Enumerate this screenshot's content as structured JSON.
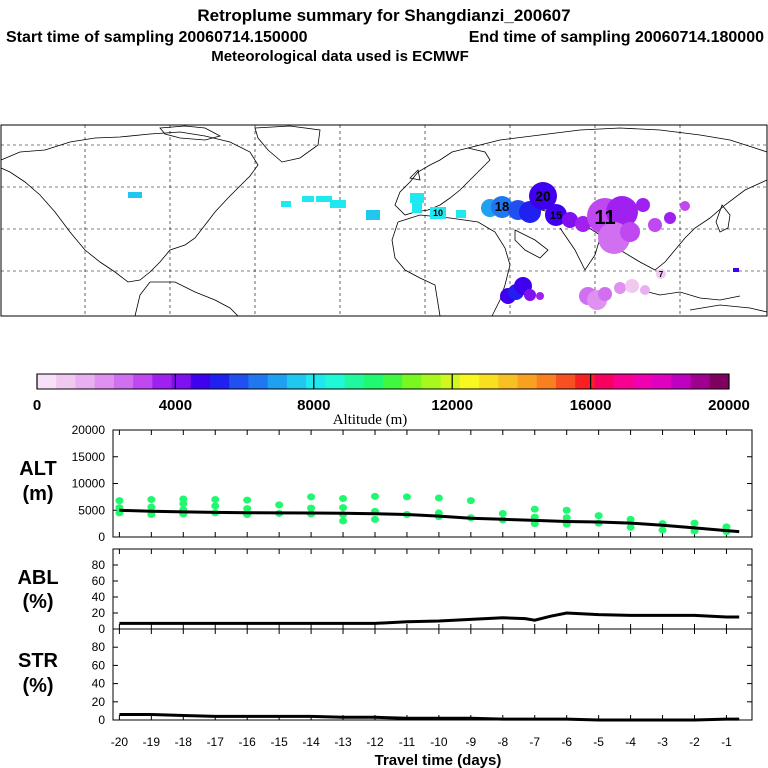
{
  "header": {
    "title": "Retroplume summary for Shangdianzi_200607",
    "sampling_start_label": "Start time of sampling 20060714.150000",
    "sampling_end_label": "End time of sampling 20060714.180000",
    "met_label": "Meteorological data used is ECMWF"
  },
  "colors": {
    "altitude_scale": [
      "#f8e0f8",
      "#f0c8f0",
      "#e8b0f0",
      "#e090f0",
      "#d070f0",
      "#c048f0",
      "#a020f0",
      "#8010f0",
      "#4000f0",
      "#2020f0",
      "#2050f0",
      "#2078f0",
      "#20a0f0",
      "#20c8f0",
      "#20e8f0",
      "#20f8d8",
      "#20f8a0",
      "#20f870",
      "#40f840",
      "#78f820",
      "#a8f820",
      "#d0f820",
      "#f8f820",
      "#f8e020",
      "#f8c020",
      "#f8a020",
      "#f88020",
      "#f85020",
      "#f82020",
      "#f80060",
      "#f80090",
      "#f000b0",
      "#e000c0",
      "#c000c0",
      "#a00090",
      "#800060"
    ],
    "scatter_dot": "#20f870",
    "line": "#000000"
  },
  "map": {
    "name": "retroplume-map",
    "plume_labels": [
      {
        "label": "20",
        "color": "#4000f0"
      },
      {
        "label": "18",
        "color": "#2078f0"
      },
      {
        "label": "11",
        "color": "#a020f0"
      },
      {
        "label": "10",
        "color": "#20e8f0"
      },
      {
        "label": "7",
        "color": "#f0c8f0"
      },
      {
        "label": "15",
        "color": "#8010f0"
      }
    ]
  },
  "colorbar": {
    "tick_labels": [
      "0",
      "4000",
      "8000",
      "12000",
      "16000",
      "20000"
    ],
    "axis_label": "Altitude (m)"
  },
  "chart_data": [
    {
      "type": "line",
      "name": "ALT",
      "ylabel": "ALT\n(m)",
      "ylabel_lines": [
        "ALT",
        "(m)"
      ],
      "ylim": [
        0,
        20000
      ],
      "yticks": [
        0,
        5000,
        10000,
        15000,
        20000
      ],
      "ytick_labels": [
        "0",
        "5000",
        "10000",
        "15000",
        "20000"
      ],
      "x": [
        -20,
        -19,
        -18,
        -17,
        -16,
        -15,
        -14,
        -13,
        -12,
        -11,
        -10,
        -9,
        -8,
        -7,
        -6,
        -5,
        -4,
        -3,
        -2,
        -1,
        -0.6
      ],
      "values": [
        5000,
        4800,
        4700,
        4600,
        4550,
        4500,
        4480,
        4450,
        4350,
        4200,
        3900,
        3500,
        3300,
        3100,
        2900,
        2800,
        2600,
        2200,
        1700,
        1200,
        1000
      ],
      "scatter": {
        "x": [
          -20,
          -20,
          -20,
          -19,
          -19,
          -19,
          -18,
          -18,
          -18,
          -18,
          -17,
          -17,
          -17,
          -16,
          -16,
          -16,
          -15,
          -15,
          -14,
          -14,
          -14,
          -13,
          -13,
          -13,
          -13,
          -12,
          -12,
          -12,
          -11,
          -11,
          -10,
          -10,
          -10,
          -9,
          -9,
          -8,
          -8,
          -7,
          -7,
          -7,
          -6,
          -6,
          -6,
          -5,
          -5,
          -4,
          -4,
          -3,
          -3,
          -2,
          -2,
          -1,
          -1
        ],
        "y": [
          4500,
          5500,
          6800,
          4200,
          5600,
          7000,
          4300,
          5100,
          6200,
          7100,
          4500,
          5800,
          7000,
          4200,
          5300,
          6900,
          4400,
          6000,
          4300,
          5400,
          7500,
          3000,
          4200,
          5500,
          7200,
          3300,
          4800,
          7600,
          4200,
          7500,
          3800,
          4500,
          7300,
          3600,
          6800,
          3200,
          4400,
          2500,
          3700,
          5200,
          2400,
          3600,
          5000,
          2600,
          4000,
          1800,
          3300,
          1300,
          2500,
          1100,
          2600,
          1000,
          1900
        ]
      }
    },
    {
      "type": "line",
      "name": "ABL",
      "ylabel_lines": [
        "ABL",
        "(%)"
      ],
      "ylim": [
        0,
        100
      ],
      "yticks": [
        0,
        20,
        40,
        60,
        80
      ],
      "ytick_labels": [
        "0",
        "20",
        "40",
        "60",
        "80"
      ],
      "x": [
        -20,
        -19,
        -18,
        -17,
        -16,
        -15,
        -14,
        -13,
        -12,
        -11,
        -10,
        -9,
        -8,
        -7.3,
        -7,
        -6.5,
        -6,
        -5,
        -4,
        -3,
        -2,
        -1,
        -0.6
      ],
      "values": [
        7,
        7,
        7,
        7,
        7,
        7,
        7,
        7,
        7,
        9,
        10,
        12,
        14,
        13,
        11,
        16,
        20,
        18,
        17,
        17,
        17,
        15,
        15
      ]
    },
    {
      "type": "line",
      "name": "STR",
      "ylabel_lines": [
        "STR",
        "(%)"
      ],
      "ylim": [
        0,
        100
      ],
      "yticks": [
        0,
        20,
        40,
        60,
        80
      ],
      "ytick_labels": [
        "0",
        "20",
        "40",
        "60",
        "80"
      ],
      "x": [
        -20,
        -19,
        -18,
        -17,
        -16,
        -15,
        -14,
        -13,
        -12,
        -11,
        -10,
        -9,
        -8,
        -7,
        -6,
        -5,
        -4,
        -3,
        -2,
        -1,
        -0.6
      ],
      "values": [
        6,
        6,
        5,
        4,
        4,
        4,
        4,
        3,
        3,
        2,
        2,
        2,
        1,
        1,
        1,
        0,
        0,
        0,
        0,
        1,
        1
      ]
    }
  ],
  "xaxis": {
    "tick_labels": [
      "-20",
      "-19",
      "-18",
      "-17",
      "-16",
      "-15",
      "-14",
      "-13",
      "-12",
      "-11",
      "-10",
      "-9",
      "-8",
      "-7",
      "-6",
      "-5",
      "-4",
      "-3",
      "-2",
      "-1"
    ],
    "label": "Travel time (days)"
  }
}
